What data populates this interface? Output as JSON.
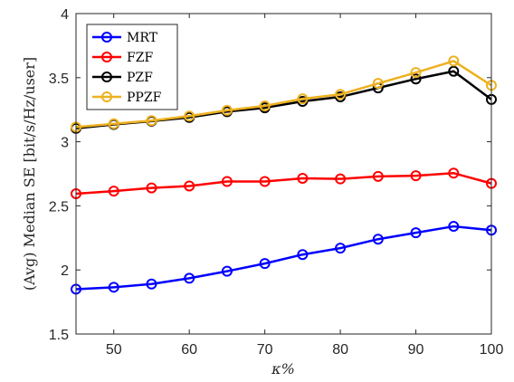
{
  "chart_data": {
    "type": "line",
    "x": [
      45,
      50,
      55,
      60,
      65,
      70,
      75,
      80,
      85,
      90,
      95,
      100
    ],
    "xlabel": "κ%",
    "ylabel": "(Avg) Median SE [bit/s/Hz/user]",
    "xlim": [
      45,
      100
    ],
    "ylim": [
      1.5,
      4
    ],
    "xticks": [
      "50",
      "60",
      "70",
      "80",
      "90",
      "100"
    ],
    "yticks": [
      "1.5",
      "2",
      "2.5",
      "3",
      "3.5",
      "4"
    ],
    "grid": false,
    "legend_position": "top-left",
    "series": [
      {
        "name": "MRT",
        "color": "#0000ff",
        "values": [
          1.85,
          1.865,
          1.89,
          1.935,
          1.99,
          2.05,
          2.12,
          2.17,
          2.24,
          2.29,
          2.34,
          2.31
        ]
      },
      {
        "name": "FZF",
        "color": "#ff0000",
        "values": [
          2.595,
          2.615,
          2.64,
          2.655,
          2.69,
          2.69,
          2.715,
          2.71,
          2.73,
          2.735,
          2.755,
          2.675
        ]
      },
      {
        "name": "PZF",
        "color": "#000000",
        "values": [
          3.105,
          3.135,
          3.16,
          3.19,
          3.235,
          3.265,
          3.315,
          3.35,
          3.42,
          3.49,
          3.55,
          3.33
        ]
      },
      {
        "name": "PPZF",
        "color": "#edb120",
        "values": [
          3.115,
          3.14,
          3.165,
          3.2,
          3.245,
          3.28,
          3.335,
          3.37,
          3.455,
          3.54,
          3.63,
          3.44
        ]
      }
    ]
  }
}
